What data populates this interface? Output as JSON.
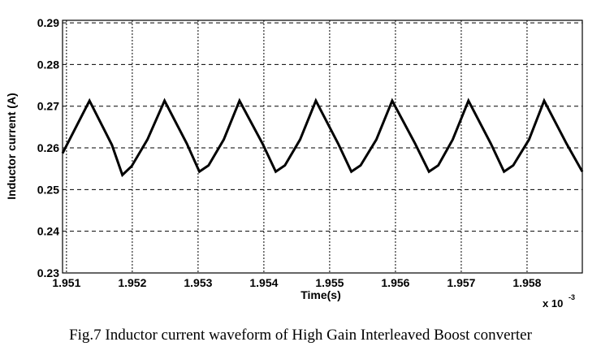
{
  "caption": "Fig.7 Inductor current waveform of High Gain Interleaved Boost converter",
  "chart_data": {
    "type": "line",
    "title": "",
    "xlabel": "Time(s)",
    "x_multiplier": "x 10",
    "x_multiplier_exp": "-3",
    "ylabel": "Inductor current (A)",
    "xlim": [
      1.95094,
      1.95884
    ],
    "ylim": [
      0.23,
      0.2906
    ],
    "grid": true,
    "xticks": [
      1.951,
      1.952,
      1.953,
      1.954,
      1.955,
      1.956,
      1.957,
      1.958
    ],
    "xtick_labels": [
      "1.951",
      "1.952",
      "1.953",
      "1.954",
      "1.955",
      "1.956",
      "1.957",
      "1.958"
    ],
    "yticks": [
      0.23,
      0.24,
      0.25,
      0.26,
      0.27,
      0.28,
      0.29
    ],
    "ytick_labels": [
      "0.23",
      "0.24",
      "0.25",
      "0.26",
      "0.27",
      "0.28",
      "0.29"
    ],
    "series": [
      {
        "name": "Inductor current",
        "color": "#000000",
        "points": [
          [
            1.95094,
            0.2587
          ],
          [
            1.95135,
            0.2713
          ],
          [
            1.95169,
            0.2607
          ],
          [
            1.95185,
            0.2535
          ],
          [
            1.95199,
            0.2556
          ],
          [
            1.95223,
            0.262
          ],
          [
            1.95249,
            0.2713
          ],
          [
            1.95283,
            0.261
          ],
          [
            1.95302,
            0.2543
          ],
          [
            1.95316,
            0.2558
          ],
          [
            1.95339,
            0.262
          ],
          [
            1.95363,
            0.2713
          ],
          [
            1.95398,
            0.261
          ],
          [
            1.95418,
            0.2543
          ],
          [
            1.95432,
            0.2558
          ],
          [
            1.95455,
            0.262
          ],
          [
            1.95479,
            0.2713
          ],
          [
            1.95513,
            0.261
          ],
          [
            1.95533,
            0.2543
          ],
          [
            1.95547,
            0.2558
          ],
          [
            1.95571,
            0.262
          ],
          [
            1.95595,
            0.2713
          ],
          [
            1.9563,
            0.261
          ],
          [
            1.95651,
            0.2543
          ],
          [
            1.95665,
            0.2558
          ],
          [
            1.95687,
            0.262
          ],
          [
            1.95711,
            0.2713
          ],
          [
            1.95745,
            0.261
          ],
          [
            1.95765,
            0.2543
          ],
          [
            1.95779,
            0.2558
          ],
          [
            1.95803,
            0.262
          ],
          [
            1.95826,
            0.2713
          ],
          [
            1.9586,
            0.261
          ],
          [
            1.95884,
            0.2543
          ]
        ]
      }
    ]
  }
}
